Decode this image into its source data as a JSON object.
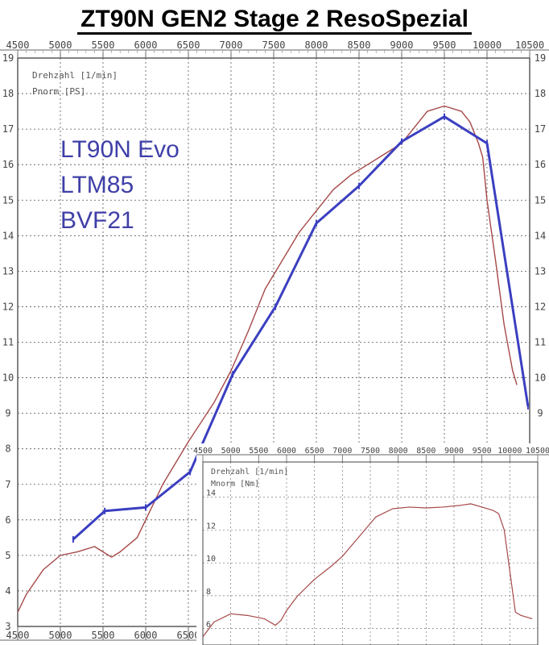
{
  "title": "ZT90N GEN2  Stage 2  ResoSpezial",
  "annotations": [
    "LT90N Evo",
    "LTM85",
    "BVF21"
  ],
  "colors": {
    "red_curve": "#a64848",
    "blue_curve": "#3b3fc0",
    "annotation": "#3f3fa8",
    "grid": "#555555"
  },
  "chart_data": [
    {
      "type": "line",
      "label_lines": [
        "Drehzahl [1/min]",
        "Pnorm [PS]"
      ],
      "xlim": [
        4500,
        10500
      ],
      "ylim": [
        3,
        19
      ],
      "x_ticks": [
        4500,
        5000,
        5500,
        6000,
        6500,
        7000,
        7500,
        8000,
        8500,
        9000,
        9500,
        10000,
        10500
      ],
      "y_ticks": [
        3,
        4,
        5,
        6,
        7,
        8,
        9,
        10,
        11,
        12,
        13,
        14,
        15,
        16,
        17,
        18,
        19
      ],
      "grid": true,
      "series": [
        {
          "x": [
            4500,
            4600,
            4800,
            5000,
            5200,
            5400,
            5500,
            5600,
            5700,
            5900,
            6000,
            6200,
            6400,
            6500,
            6800,
            7000,
            7200,
            7400,
            7600,
            7800,
            8000,
            8200,
            8400,
            8600,
            8800,
            9000,
            9100,
            9200,
            9300,
            9500,
            9700,
            9800,
            9900,
            9950,
            10000,
            10100,
            10200,
            10300,
            10350
          ],
          "y": [
            3.4,
            3.9,
            4.6,
            5.0,
            5.1,
            5.25,
            5.1,
            4.95,
            5.1,
            5.5,
            6.0,
            7.0,
            7.8,
            8.2,
            9.3,
            10.2,
            11.3,
            12.5,
            13.3,
            14.1,
            14.7,
            15.3,
            15.7,
            16.0,
            16.3,
            16.6,
            16.9,
            17.2,
            17.5,
            17.65,
            17.5,
            17.2,
            16.6,
            16.2,
            15.0,
            13.3,
            11.5,
            10.2,
            9.8
          ]
        },
        {
          "x": [
            5150,
            5520,
            6000,
            6520,
            7020,
            7520,
            8000,
            8500,
            9000,
            9500,
            10000,
            10480
          ],
          "y": [
            5.45,
            6.25,
            6.35,
            7.35,
            10.1,
            12.0,
            14.35,
            15.4,
            16.65,
            17.35,
            16.6,
            9.2
          ]
        }
      ]
    },
    {
      "type": "line",
      "label_lines": [
        "Drehzahl [1/min]",
        "Mnorm [Nm]"
      ],
      "xlim": [
        4500,
        10500
      ],
      "ylim": [
        5,
        16
      ],
      "x_ticks": [
        4500,
        5000,
        5500,
        6000,
        6500,
        7000,
        7500,
        8000,
        8500,
        9000,
        9500,
        10000,
        10500
      ],
      "y_ticks": [
        6,
        8,
        10,
        12,
        14
      ],
      "grid": true,
      "series": [
        {
          "x": [
            4500,
            4700,
            5000,
            5300,
            5600,
            5800,
            5900,
            6000,
            6200,
            6500,
            6800,
            7000,
            7300,
            7600,
            7900,
            8200,
            8500,
            8800,
            9100,
            9300,
            9500,
            9700,
            9800,
            9900,
            10000,
            10100,
            10200,
            10400
          ],
          "y": [
            5.5,
            6.4,
            6.9,
            6.8,
            6.6,
            6.2,
            6.5,
            7.1,
            8.0,
            9.0,
            9.8,
            10.4,
            11.6,
            12.8,
            13.3,
            13.4,
            13.35,
            13.4,
            13.5,
            13.6,
            13.4,
            13.2,
            13.0,
            12.0,
            9.5,
            7.0,
            6.8,
            6.6
          ]
        }
      ]
    }
  ]
}
